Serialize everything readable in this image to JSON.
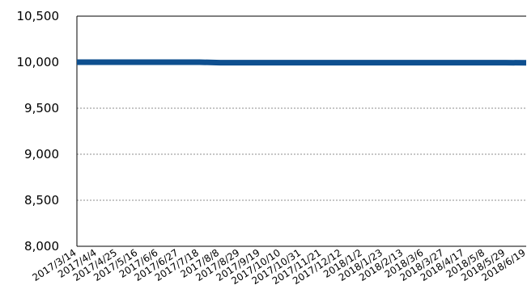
{
  "chart_data": {
    "type": "line",
    "title": "",
    "xlabel": "",
    "ylabel": "",
    "ylim": [
      8000,
      10500
    ],
    "grid": "horizontal dotted",
    "legend": "none",
    "y_ticks": [
      "8,000",
      "8,500",
      "9,000",
      "9,500",
      "10,000",
      "10,500"
    ],
    "categories": [
      "2017/3/14",
      "2017/4/4",
      "2017/4/25",
      "2017/5/16",
      "2017/6/6",
      "2017/6/27",
      "2017/7/18",
      "2017/8/8",
      "2017/8/29",
      "2017/9/19",
      "2017/10/10",
      "2017/10/31",
      "2017/11/21",
      "2017/12/12",
      "2018/1/2",
      "2018/1/23",
      "2018/2/13",
      "2018/3/6",
      "2018/3/27",
      "2018/4/17",
      "2018/5/8",
      "2018/5/29",
      "2018/6/19"
    ],
    "series": [
      {
        "values": [
          10000,
          10000,
          10000,
          10000,
          10000,
          10000,
          10000,
          9995,
          9995,
          9995,
          9995,
          9995,
          9995,
          9995,
          9995,
          9995,
          9995,
          9995,
          9995,
          9995,
          9995,
          9995,
          9993
        ],
        "color": "#0e4f8f"
      }
    ]
  }
}
